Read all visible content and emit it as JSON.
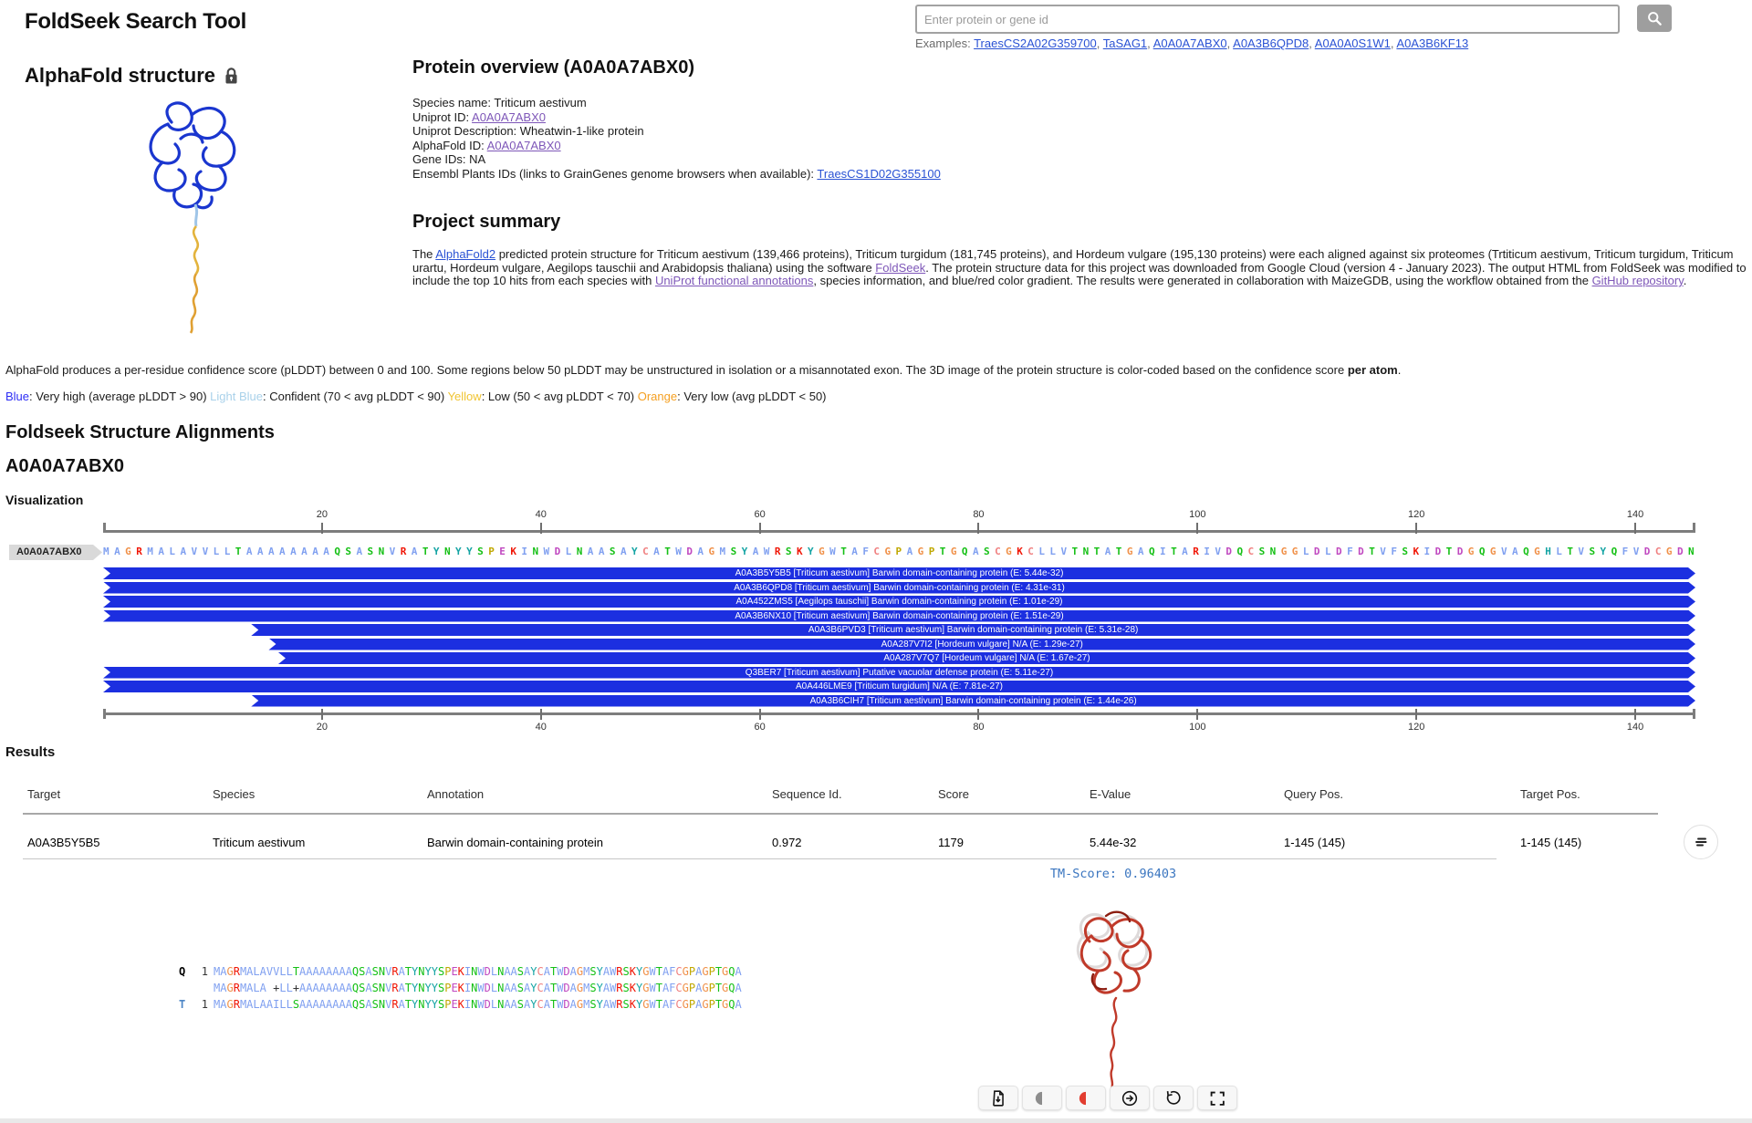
{
  "header": {
    "title": "FoldSeek Search Tool",
    "search": {
      "placeholder": "Enter protein or gene id",
      "button_icon": "search-icon"
    },
    "examples_label": "Examples:",
    "examples": [
      "TraesCS2A02G359700",
      "TaSAG1",
      "A0A0A7ABX0",
      "A0A3B6QPD8",
      "A0A0A0S1W1",
      "A0A3B6KF13"
    ]
  },
  "alphafold_panel": {
    "title": "AlphaFold structure",
    "lock_icon": "lock-icon"
  },
  "protein_overview": {
    "title": "Protein overview (A0A0A7ABX0)",
    "lines": [
      {
        "label": "Species name: ",
        "text": "Triticum aestivum"
      },
      {
        "label": "Uniprot ID: ",
        "link": "A0A0A7ABX0",
        "visited": true
      },
      {
        "label": "Uniprot Description: ",
        "text": "Wheatwin-1-like protein"
      },
      {
        "label": "AlphaFold ID: ",
        "link": "A0A0A7ABX0",
        "visited": true
      },
      {
        "label": "Gene IDs: ",
        "text": "NA"
      },
      {
        "label": "Ensembl Plants IDs (links to GrainGenes genome browsers when available): ",
        "link": "TraesCS1D02G355100",
        "visited": false
      }
    ]
  },
  "project_summary": {
    "title": "Project summary",
    "segments": [
      {
        "t": "The "
      },
      {
        "t": "AlphaFold2",
        "link": true,
        "visited": false
      },
      {
        "t": " predicted protein structure for Triticum aestivum (139,466 proteins), Triticum turgidum (181,745 proteins), and Hordeum vulgare (195,130 proteins) were each aligned against six proteomes (Trtiticum aestivum, Triticum turgidum, Triticum urartu, Hordeum vulgare, Aegilops tauschii and Arabidopsis thaliana) using the software "
      },
      {
        "t": "FoldSeek",
        "link": true,
        "visited": true
      },
      {
        "t": ". The protein structure data for this project was downloaded from Google Cloud (version 4 - January 2023). The output HTML from FoldSeek was modified to include the top 10 hits from each species with "
      },
      {
        "t": "UniProt functional annotations",
        "link": true,
        "visited": true
      },
      {
        "t": ", species information, and blue/red color gradient. The results were generated in collaboration with MaizeGDB, using the workflow obtained from the "
      },
      {
        "t": "GitHub repository",
        "link": true,
        "visited": true
      },
      {
        "t": "."
      }
    ]
  },
  "plddt_note": {
    "segments": [
      {
        "t": "AlphaFold produces a per-residue confidence score (pLDDT) between 0 and 100. Some regions below 50 pLDDT may be unstructured in isolation or a misannotated exon. The 3D image of the protein structure is color-coded based on the confidence score "
      },
      {
        "t": "per atom",
        "bold": true
      },
      {
        "t": "."
      }
    ]
  },
  "plddt_legend": {
    "segments": [
      {
        "t": "Blue",
        "color": "#2d2df5",
        "name": "legend-blue-label"
      },
      {
        "t": ": Very high (average pLDDT > 90) "
      },
      {
        "t": "Light Blue",
        "color": "#a9d1ea",
        "name": "legend-light-blue-label"
      },
      {
        "t": ": Confident (70 < avg pLDDT < 90) "
      },
      {
        "t": "Yellow",
        "color": "#f0c431",
        "name": "legend-yellow-label"
      },
      {
        "t": ": Low (50 < avg pLDDT < 70) "
      },
      {
        "t": "Orange",
        "color": "#f5a022",
        "name": "legend-orange-label"
      },
      {
        "t": ": Very low (avg pLDDT < 50)"
      }
    ]
  },
  "alignments_section": {
    "title": "Foldseek Structure Alignments",
    "query_id": "A0A0A7ABX0",
    "visualization_label": "Visualization",
    "track_label": "A0A0A7ABX0",
    "ruler_ticks": [
      20,
      40,
      60,
      80,
      100,
      120,
      140
    ],
    "sequence_length": 145,
    "query_sequence": "MAGRMALAVVLLTAAAAAAAAQSASNVRATYNYYSPEKINWDLNAASAYCATWDAGMSYAWRSKYGWTAFCGPAGPTGQASCGKCLLVTNTATGAQITARIVDQCSNGGLDLDFDTVFSKIDTDGQGVAQGHLTVSYQFVDCGDN",
    "hits": [
      {
        "label": "A0A3B5Y5B5 [Triticum aestivum] Barwin domain-containing protein (E: 5.44e-32)",
        "start": 0
      },
      {
        "label": "A0A3B6QPD8 [Triticum aestivum] Barwin domain-containing protein (E: 4.31e-31)",
        "start": 0
      },
      {
        "label": "A0A452ZMS5 [Aegilops tauschii] Barwin domain-containing protein (E: 1.01e-29)",
        "start": 0
      },
      {
        "label": "A0A3B6NX10 [Triticum aestivum] Barwin domain-containing protein (E: 1.51e-29)",
        "start": 0
      },
      {
        "label": "A0A3B6PVD3 [Triticum aestivum] Barwin domain-containing protein (E: 5.31e-28)",
        "start": 0.093
      },
      {
        "label": "A0A287V7I2 [Hordeum vulgare] N/A (E: 1.29e-27)",
        "start": 0.104
      },
      {
        "label": "A0A287V7Q7 [Hordeum vulgare] N/A (E: 1.67e-27)",
        "start": 0.11
      },
      {
        "label": "Q3BER7 [Triticum aestivum] Putative vacuolar defense protein (E: 5.11e-27)",
        "start": 0
      },
      {
        "label": "A0A446LME9 [Triticum turgidum] N/A (E: 7.81e-27)",
        "start": 0
      },
      {
        "label": "A0A3B6CIH7 [Triticum aestivum] Barwin domain-containing protein (E: 1.44e-26)",
        "start": 0.093
      }
    ]
  },
  "results": {
    "title": "Results",
    "columns": [
      "Target",
      "Species",
      "Annotation",
      "Sequence Id.",
      "Score",
      "E-Value",
      "Query Pos.",
      "Target Pos."
    ],
    "rows": [
      [
        "A0A3B5Y5B5",
        "Triticum aestivum",
        "Barwin domain-containing protein",
        "0.972",
        "1179",
        "5.44e-32",
        "1-145 (145)",
        "1-145 (145)"
      ]
    ],
    "row_action_icon": "alignment-lines-icon"
  },
  "hit_detail": {
    "tm_score_text": "TM-Score: 0.96403",
    "alignment": {
      "query_label": "Q",
      "target_label": "T",
      "query_start": "1",
      "target_start": "1",
      "query_seq": "MAGRMALAVVLLTAAAAAAAAQSASNVRATYNYYSPEKINWDLNAASAYCATWDAGMSYAWRSKYGWTAFCGPAGPTGQA",
      "match_seq": "MAGRMALA +LL+AAAAAAAAQSASNVRATYNYYSPEKINWDLNAASAYCATWDAGMSYAWRSKYGWTAFCGPAGPTGQA",
      "target_seq": "MAGRMALAAILLSAAAAAAAAQSASNVRATYNYYSPEKINWDLNAASAYCATWDAGMSYAWRSKYGWTAFCGPAGPTGQA"
    }
  },
  "viewer_toolbar": {
    "buttons": [
      {
        "name": "download-structure-button",
        "icon": "file-download-icon"
      },
      {
        "name": "color-mono-button",
        "icon": "half-circle-gray-icon"
      },
      {
        "name": "color-red-button",
        "icon": "half-circle-red-icon"
      },
      {
        "name": "forward-button",
        "icon": "arrow-right-circle-icon"
      },
      {
        "name": "reset-view-button",
        "icon": "rotate-ccw-icon"
      },
      {
        "name": "fullscreen-button",
        "icon": "fullscreen-icon"
      }
    ]
  },
  "colors": {
    "hit_bar": "#1c2fe0",
    "link": "#2a52d4",
    "link_visited": "#7e57b8",
    "tm_score": "#3b76c0"
  },
  "aa_colors": {
    "A": "#80a0f0",
    "R": "#f01505",
    "N": "#15c015",
    "D": "#c048c0",
    "C": "#f08080",
    "Q": "#15c015",
    "E": "#c048c0",
    "G": "#f09048",
    "H": "#15a4a4",
    "I": "#80a0f0",
    "L": "#80a0f0",
    "K": "#f01505",
    "M": "#80a0f0",
    "F": "#80a0f0",
    "P": "#c0a800",
    "S": "#15c015",
    "T": "#15c015",
    "W": "#80a0f0",
    "Y": "#15a4a4",
    "V": "#80a0f0"
  }
}
